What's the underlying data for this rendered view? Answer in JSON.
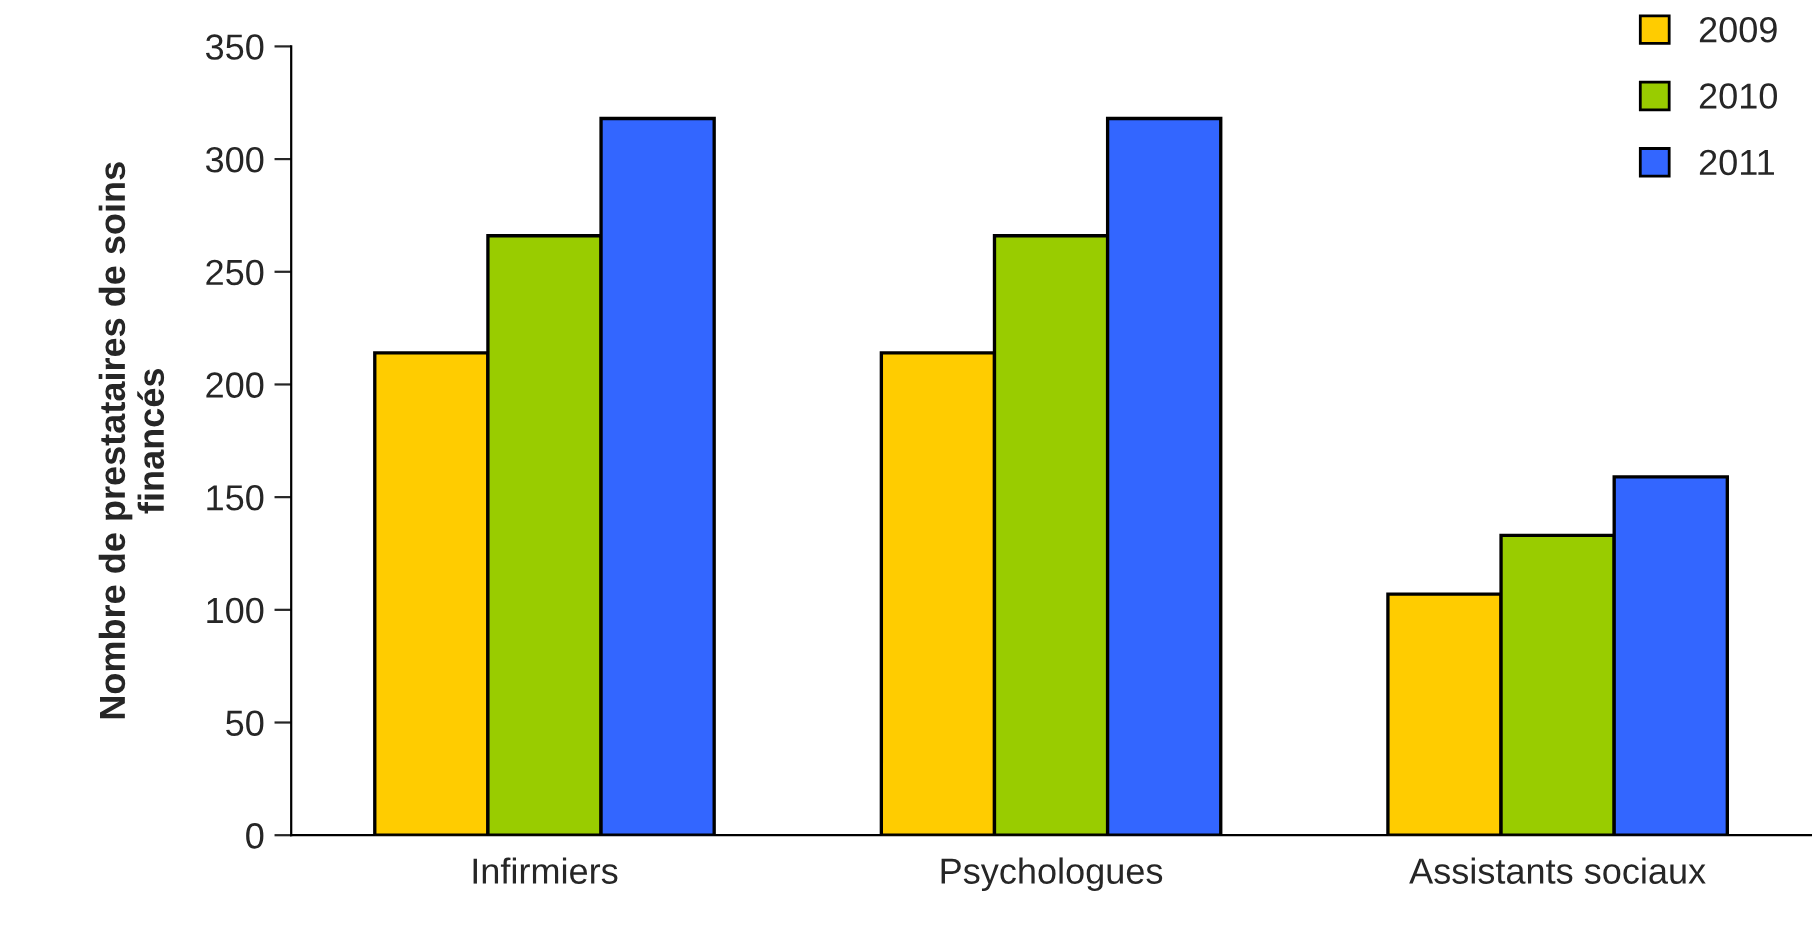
{
  "chart_data": {
    "type": "bar",
    "ylabel": "Nombre de prestataires de soins\nfinancés",
    "categories": [
      "Infirmiers",
      "Psychologues",
      "Assistants sociaux"
    ],
    "series": [
      {
        "name": "2009",
        "color": "#ffcc00",
        "values": [
          214,
          214,
          107
        ]
      },
      {
        "name": "2010",
        "color": "#99cc00",
        "values": [
          266,
          266,
          133
        ]
      },
      {
        "name": "2011",
        "color": "#3366ff",
        "values": [
          318,
          318,
          159
        ]
      }
    ],
    "ylim": [
      0,
      350
    ],
    "yticks": [
      0,
      50,
      100,
      150,
      200,
      250,
      300,
      350
    ],
    "grid": false,
    "legend": "top right"
  }
}
